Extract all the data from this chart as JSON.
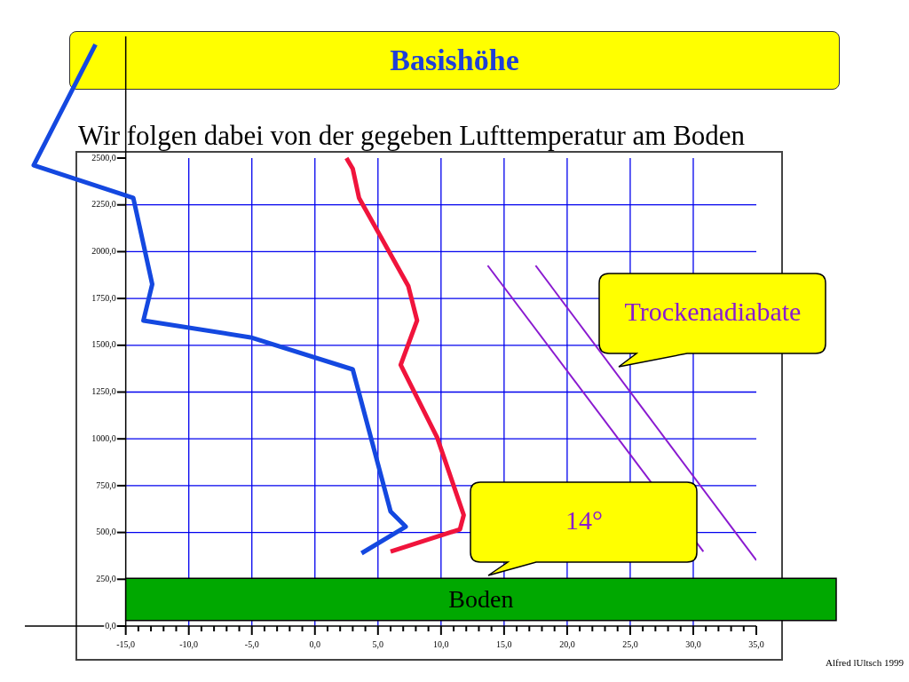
{
  "chart_data": {
    "type": "line",
    "title": "Basishöhe",
    "subtitle": "Wir folgen dabei von der gegeben Lufttemperatur am Boden",
    "xlim": [
      -23,
      35
    ],
    "ylim": [
      0,
      3150
    ],
    "xticks": [
      {
        "value": -15,
        "label": "-15,0"
      },
      {
        "value": -14,
        "label": null
      },
      {
        "value": -13,
        "label": null
      },
      {
        "value": -12,
        "label": null
      },
      {
        "value": -11,
        "label": null
      },
      {
        "value": -10,
        "label": "-10,0"
      },
      {
        "value": -9,
        "label": null
      },
      {
        "value": -8,
        "label": null
      },
      {
        "value": -7,
        "label": null
      },
      {
        "value": -6,
        "label": null
      },
      {
        "value": -5,
        "label": "-5,0"
      },
      {
        "value": -4,
        "label": null
      },
      {
        "value": -3,
        "label": null
      },
      {
        "value": -2,
        "label": null
      },
      {
        "value": -1,
        "label": null
      },
      {
        "value": 0,
        "label": "0,0"
      },
      {
        "value": 1,
        "label": null
      },
      {
        "value": 2,
        "label": null
      },
      {
        "value": 3,
        "label": null
      },
      {
        "value": 4,
        "label": null
      },
      {
        "value": 5,
        "label": "5,0"
      },
      {
        "value": 6,
        "label": null
      },
      {
        "value": 7,
        "label": null
      },
      {
        "value": 8,
        "label": null
      },
      {
        "value": 9,
        "label": null
      },
      {
        "value": 10,
        "label": "10,0"
      },
      {
        "value": 11,
        "label": null
      },
      {
        "value": 12,
        "label": null
      },
      {
        "value": 13,
        "label": null
      },
      {
        "value": 14,
        "label": null
      },
      {
        "value": 15,
        "label": "15,0"
      },
      {
        "value": 16,
        "label": null
      },
      {
        "value": 17,
        "label": null
      },
      {
        "value": 18,
        "label": null
      },
      {
        "value": 19,
        "label": null
      },
      {
        "value": 20,
        "label": "20,0"
      },
      {
        "value": 21,
        "label": null
      },
      {
        "value": 22,
        "label": null
      },
      {
        "value": 23,
        "label": null
      },
      {
        "value": 24,
        "label": null
      },
      {
        "value": 25,
        "label": "25,0"
      },
      {
        "value": 26,
        "label": null
      },
      {
        "value": 27,
        "label": null
      },
      {
        "value": 28,
        "label": null
      },
      {
        "value": 29,
        "label": null
      },
      {
        "value": 30,
        "label": "30,0"
      },
      {
        "value": 31,
        "label": null
      },
      {
        "value": 32,
        "label": null
      },
      {
        "value": 33,
        "label": null
      },
      {
        "value": 34,
        "label": null
      },
      {
        "value": 35,
        "label": "35,0"
      }
    ],
    "yticks": [
      {
        "value": 0,
        "label": "0,0"
      },
      {
        "value": 250,
        "label": "250,0"
      },
      {
        "value": 500,
        "label": "500,0"
      },
      {
        "value": 750,
        "label": "750,0"
      },
      {
        "value": 1000,
        "label": "1000,0"
      },
      {
        "value": 1250,
        "label": "1250,0"
      },
      {
        "value": 1500,
        "label": "1500,0"
      },
      {
        "value": 1750,
        "label": "1750,0"
      },
      {
        "value": 2000,
        "label": "2000,0"
      },
      {
        "value": 2250,
        "label": "2250,0"
      },
      {
        "value": 2500,
        "label": "2500,0"
      }
    ],
    "grid": true,
    "series": [
      {
        "color": "#1448e0",
        "x": [
          3.7,
          7.2,
          6.0,
          3.0,
          -5.1,
          -13.6,
          -12.9,
          -14.4,
          -22.3,
          -17.4
        ],
        "values": [
          389,
          531,
          612,
          1371,
          1542,
          1632,
          1826,
          2287,
          2462,
          3107
        ]
      },
      {
        "color": "#f0143c",
        "x": [
          6.0,
          11.5,
          11.8,
          9.7,
          6.8,
          8.1,
          7.4,
          3.5,
          3.0,
          2.5
        ],
        "values": [
          398,
          517,
          593,
          1006,
          1395,
          1632,
          1817,
          2287,
          2443,
          2500
        ]
      },
      {
        "color": "#8a1ad0",
        "x": [
          13.7,
          30.8
        ],
        "values": [
          1926,
          398
        ]
      },
      {
        "color": "#8a1ad0",
        "x": [
          17.5,
          35.0
        ],
        "values": [
          1926,
          351
        ]
      }
    ],
    "bands": [
      {
        "axis": "y",
        "from": 30,
        "to": 255,
        "label": "Boden",
        "color": "#00a800"
      }
    ],
    "annotations": [
      "Trockenadiabate",
      "14°",
      "Alfred lUltsch 1999"
    ]
  }
}
